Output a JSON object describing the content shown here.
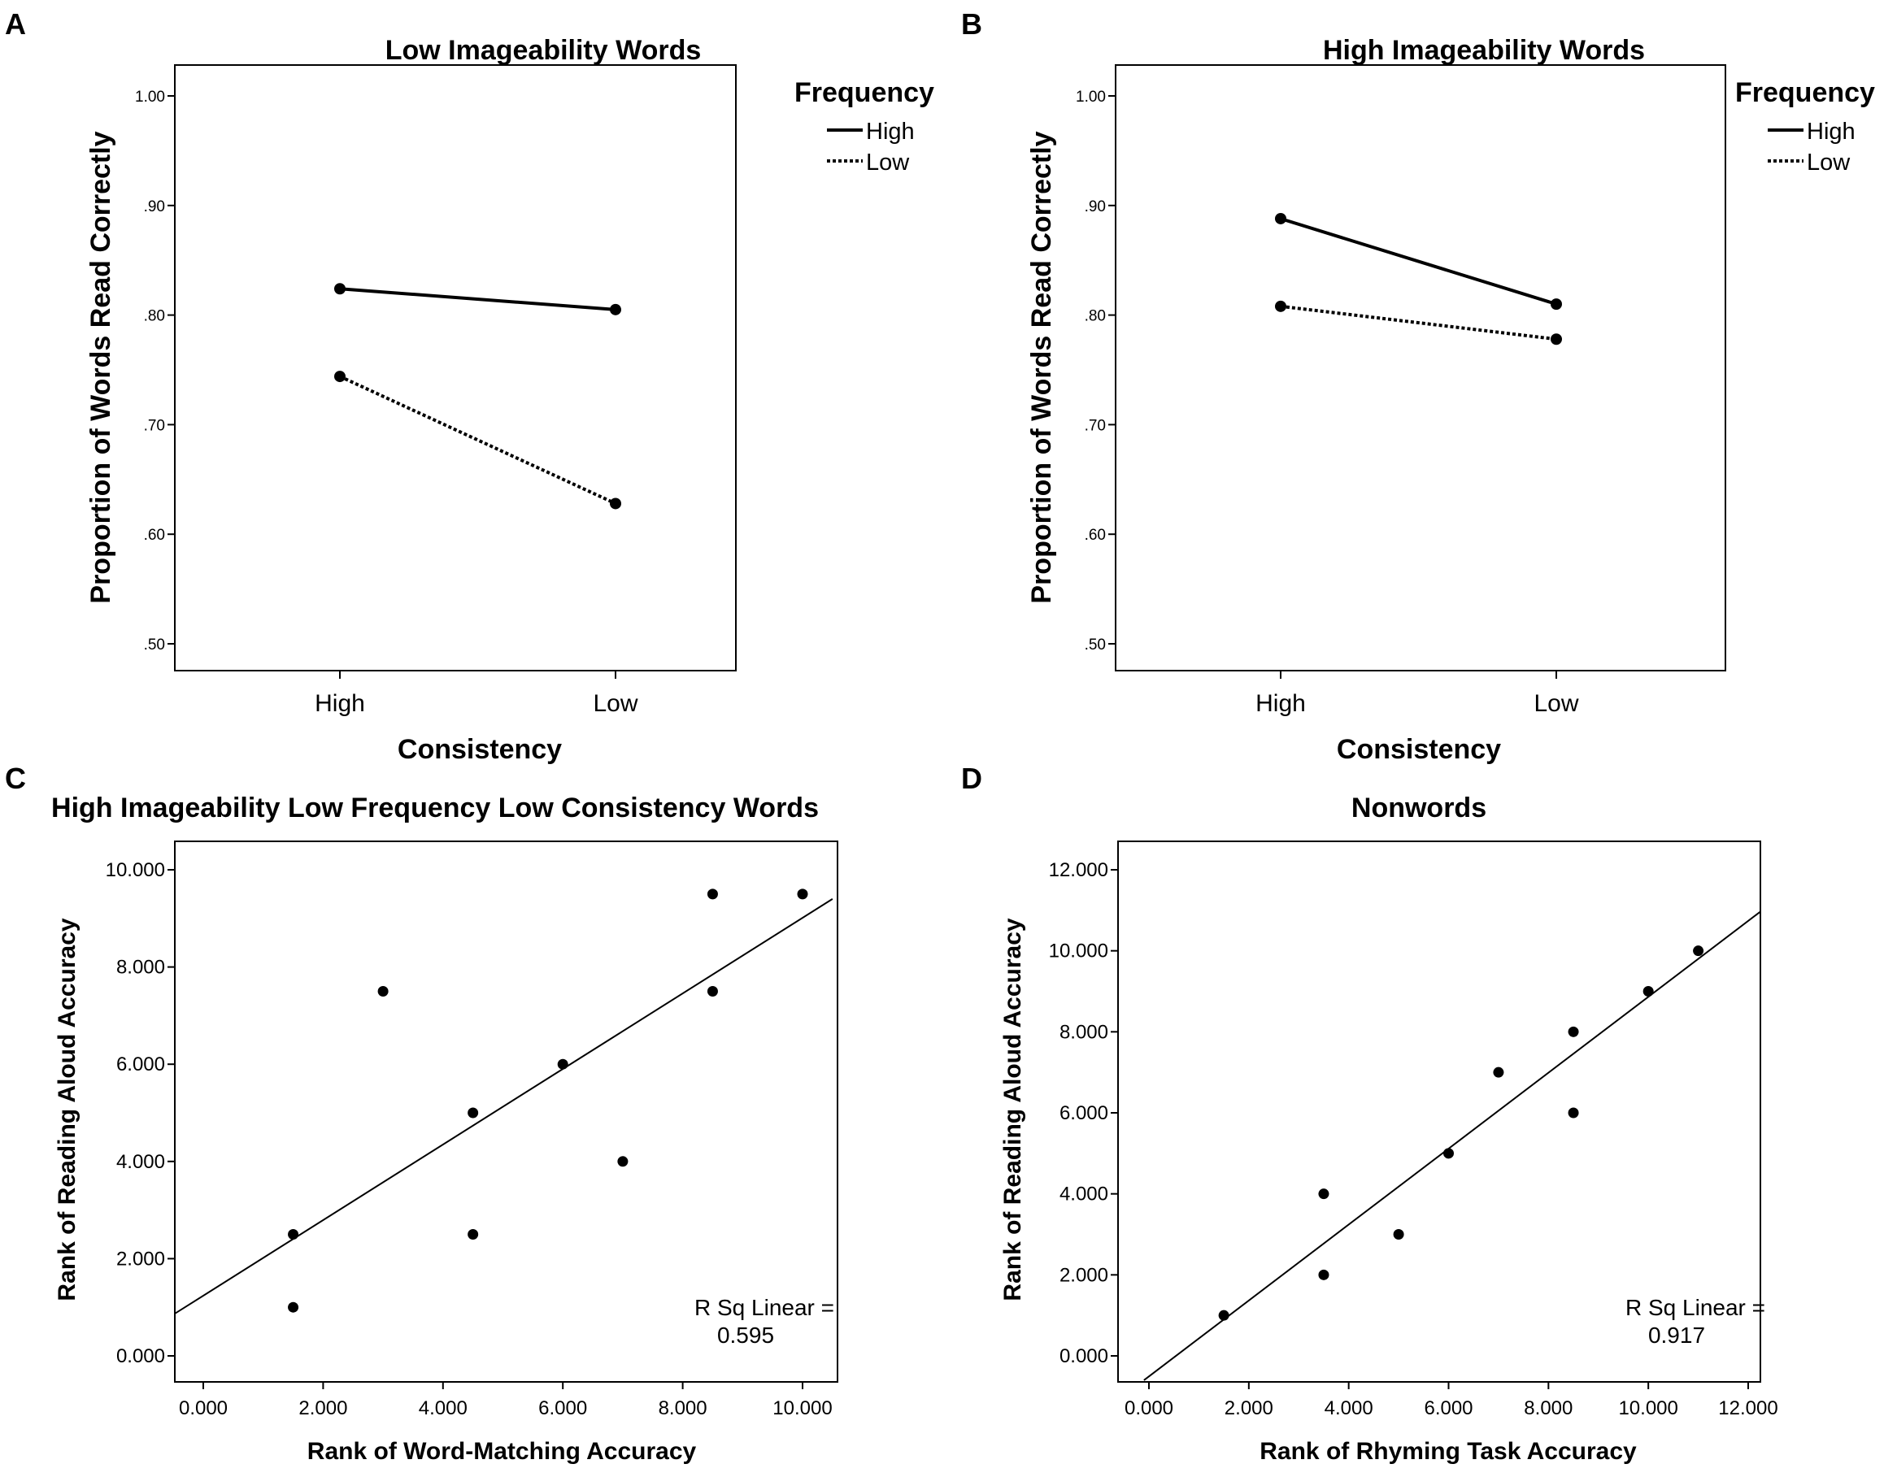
{
  "chart_data": [
    {
      "panel": "A",
      "type": "line",
      "title": "Low Imageability Words",
      "xlabel": "Consistency",
      "ylabel": "Proportion of Words Read Correctly",
      "categories": [
        "High",
        "Low"
      ],
      "ylim": [
        0.5,
        1.0
      ],
      "yticks": [
        0.5,
        0.6,
        0.7,
        0.8,
        0.9,
        1.0
      ],
      "ytick_labels": [
        ".50",
        ".60",
        ".70",
        ".80",
        ".90",
        "1.00"
      ],
      "legend_title": "Frequency",
      "series": [
        {
          "name": "High",
          "style": "solid",
          "values": [
            0.824,
            0.805
          ]
        },
        {
          "name": "Low",
          "style": "dotted",
          "values": [
            0.744,
            0.628
          ]
        }
      ]
    },
    {
      "panel": "B",
      "type": "line",
      "title": "High Imageability Words",
      "xlabel": "Consistency",
      "ylabel": "Proportion of Words Read Correctly",
      "categories": [
        "High",
        "Low"
      ],
      "ylim": [
        0.5,
        1.0
      ],
      "yticks": [
        0.5,
        0.6,
        0.7,
        0.8,
        0.9,
        1.0
      ],
      "ytick_labels": [
        ".50",
        ".60",
        ".70",
        ".80",
        ".90",
        "1.00"
      ],
      "legend_title": "Frequency",
      "series": [
        {
          "name": "High",
          "style": "solid",
          "values": [
            0.888,
            0.81
          ]
        },
        {
          "name": "Low",
          "style": "dotted",
          "values": [
            0.808,
            0.778
          ]
        }
      ]
    },
    {
      "panel": "C",
      "type": "scatter",
      "title": "High Imageability Low Frequency Low Consistency Words",
      "xlabel": "Rank of Word-Matching Accuracy",
      "ylabel": "Rank of Reading Aloud Accuracy",
      "xlim": [
        -0.5,
        10.5
      ],
      "ylim": [
        -0.5,
        10.5
      ],
      "xticks": [
        0,
        2,
        4,
        6,
        8,
        10
      ],
      "xtick_labels": [
        "0.000",
        "2.000",
        "4.000",
        "6.000",
        "8.000",
        "10.000"
      ],
      "yticks": [
        0,
        2,
        4,
        6,
        8,
        10
      ],
      "ytick_labels": [
        "0.000",
        "2.000",
        "4.000",
        "6.000",
        "8.000",
        "10.000"
      ],
      "points": [
        {
          "x": 1.5,
          "y": 1.0
        },
        {
          "x": 1.5,
          "y": 2.5
        },
        {
          "x": 3.0,
          "y": 7.5
        },
        {
          "x": 4.5,
          "y": 5.0
        },
        {
          "x": 4.5,
          "y": 2.5
        },
        {
          "x": 6.0,
          "y": 6.0
        },
        {
          "x": 7.0,
          "y": 4.0
        },
        {
          "x": 8.5,
          "y": 9.5
        },
        {
          "x": 8.5,
          "y": 7.5
        },
        {
          "x": 10.0,
          "y": 9.5
        }
      ],
      "fit_line": {
        "x": [
          -0.5,
          10.5
        ],
        "y": [
          0.85,
          9.4
        ]
      },
      "annotation_line1": "R Sq Linear =",
      "annotation_line2": "0.595"
    },
    {
      "panel": "D",
      "type": "scatter",
      "title": "Nonwords",
      "xlabel": "Rank of Rhyming Task Accuracy",
      "ylabel": "Rank of Reading Aloud Accuracy",
      "xlim": [
        -0.6,
        12.6
      ],
      "ylim": [
        -0.6,
        12.6
      ],
      "xticks": [
        0,
        2,
        4,
        6,
        8,
        10,
        12
      ],
      "xtick_labels": [
        "0.000",
        "2.000",
        "4.000",
        "6.000",
        "8.000",
        "10.000",
        "12.000"
      ],
      "yticks": [
        0,
        2,
        4,
        6,
        8,
        10,
        12
      ],
      "ytick_labels": [
        "0.000",
        "2.000",
        "4.000",
        "6.000",
        "8.000",
        "10.000",
        "12.000"
      ],
      "points": [
        {
          "x": 1.5,
          "y": 1.0
        },
        {
          "x": 3.5,
          "y": 4.0
        },
        {
          "x": 3.5,
          "y": 2.0
        },
        {
          "x": 5.0,
          "y": 3.0
        },
        {
          "x": 6.0,
          "y": 5.0
        },
        {
          "x": 7.0,
          "y": 7.0
        },
        {
          "x": 8.5,
          "y": 8.0
        },
        {
          "x": 8.5,
          "y": 6.0
        },
        {
          "x": 10.0,
          "y": 9.0
        },
        {
          "x": 11.0,
          "y": 10.0
        }
      ],
      "fit_line": {
        "x": [
          -0.1,
          12.6
        ],
        "y": [
          -0.6,
          11.3
        ]
      },
      "annotation_line1": "R Sq Linear =",
      "annotation_line2": "0.917"
    }
  ]
}
